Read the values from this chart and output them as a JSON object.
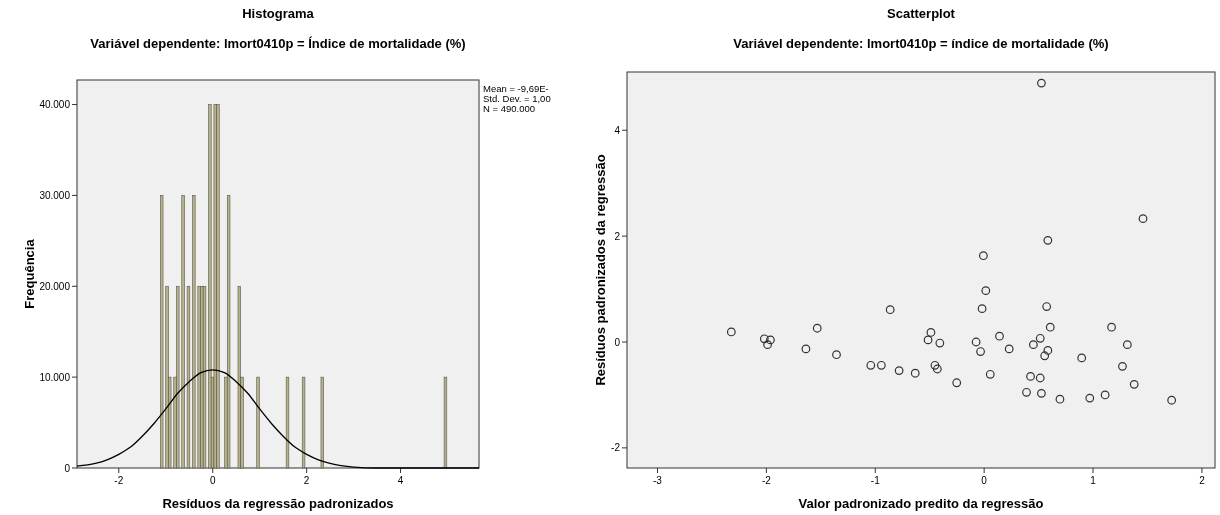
{
  "chart_data": [
    {
      "type": "histogram",
      "title": "Histograma",
      "subtitle": "Variável dependente: lmort0410p = Índice de mortalidade (%)",
      "xlabel": "Resíduos da regressão padronizados",
      "ylabel": "Frequência",
      "color": "#b8b386",
      "bins": [
        -1.115,
        -1.058,
        -1.001,
        -0.944,
        -0.887,
        -0.83,
        -0.773,
        -0.716,
        -0.659,
        -0.602,
        -0.545,
        -0.488,
        -0.431,
        -0.374,
        -0.317,
        -0.26,
        -0.203,
        -0.146,
        -0.089,
        -0.032,
        0.025,
        0.082,
        0.139,
        0.196,
        0.253,
        0.31,
        0.367,
        0.424,
        0.481,
        0.538,
        0.595,
        0.652,
        0.709,
        0.766,
        0.823,
        0.88,
        0.937,
        0.994,
        1.051,
        1.108,
        1.165,
        1.222,
        1.279,
        1.336,
        1.393,
        1.45,
        1.507,
        1.564,
        1.621,
        1.678,
        1.735,
        1.792,
        1.849,
        1.906,
        1.963,
        2.02,
        2.077,
        2.134,
        2.191,
        2.248,
        2.305,
        2.362,
        2.419,
        2.476,
        2.533,
        2.59,
        2.647,
        2.704,
        2.761,
        2.818,
        2.875,
        2.932,
        2.989,
        3.046,
        3.103,
        3.16,
        3.217,
        3.274,
        3.331,
        3.388,
        3.445,
        3.502,
        3.559,
        3.616,
        3.673,
        3.73,
        3.787,
        3.844,
        3.901,
        3.958,
        4.015,
        4.072,
        4.129,
        4.186,
        4.243,
        4.3,
        4.357,
        4.414,
        4.471,
        4.528,
        4.585,
        4.642,
        4.699,
        4.756,
        4.813,
        4.87,
        4.927,
        4.984
      ],
      "values": [
        30000,
        0,
        20000,
        10000,
        0,
        10000,
        20000,
        0,
        30000,
        0,
        20000,
        0,
        30000,
        0,
        20000,
        20000,
        20000,
        0,
        40000,
        10000,
        40000,
        40000,
        0,
        0,
        10000,
        30000,
        0,
        0,
        0,
        20000,
        10000,
        0,
        0,
        0,
        0,
        0,
        10000,
        0,
        0,
        0,
        0,
        0,
        0,
        0,
        0,
        0,
        0,
        10000,
        0,
        0,
        0,
        0,
        0,
        10000,
        0,
        0,
        0,
        0,
        0,
        0,
        10000,
        0,
        0,
        0,
        0,
        0,
        0,
        0,
        0,
        0,
        0,
        0,
        0,
        0,
        0,
        0,
        0,
        0,
        0,
        0,
        0,
        0,
        0,
        0,
        0,
        0,
        0,
        0,
        0,
        0,
        0,
        0,
        0,
        0,
        0,
        0,
        0,
        0,
        0,
        0,
        0,
        0,
        0,
        0,
        0,
        0,
        10000
      ],
      "series": [
        {
          "type": "line",
          "color": "#000000",
          "x": [
            -2.89,
            -2.5,
            -2.25,
            -2,
            -1.75,
            -1.5,
            -1.25,
            -1,
            -0.75,
            -0.5,
            -0.25,
            0,
            0.25,
            0.5,
            0.75,
            1,
            1.25,
            1.5,
            1.75,
            2,
            2.25,
            2.5,
            3,
            3.5,
            4,
            5.67
          ],
          "values": [
            200,
            500,
            900,
            1500,
            2300,
            3500,
            4900,
            6500,
            8200,
            9500,
            10500,
            10800,
            10500,
            9500,
            8200,
            6500,
            4900,
            3500,
            2300,
            1500,
            900,
            500,
            100,
            0,
            0,
            0
          ]
        }
      ],
      "xlim": [
        -2.89,
        5.67
      ],
      "xticks": [
        -2,
        0,
        2,
        4
      ],
      "ylim": [
        0,
        42700
      ],
      "yticks": [
        0,
        {
          "value": 10000,
          "label": "10.000"
        },
        {
          "value": 20000,
          "label": "20.000"
        },
        {
          "value": 30000,
          "label": "30.000"
        },
        {
          "value": 40000,
          "label": "40.000"
        }
      ],
      "annotations": [
        "Mean = -9,69E-",
        "Std. Dev. = 1,00",
        "N = 490.000"
      ]
    },
    {
      "type": "scatter",
      "title": "Scatterplot",
      "subtitle": "Variável dependente: lmort0410p = índice de mortalidade (%)",
      "xlabel": "Valor padronizado predito da regressão",
      "ylabel": "Resíduos padronizados da regressão",
      "color": "#333333",
      "marker": "circle",
      "x": [
        0.526,
        1.459,
        0.585,
        -0.007,
        0.015,
        -0.019,
        0.574,
        -0.863,
        -2.322,
        -2.019,
        -1.963,
        -1.989,
        -1.533,
        -1.637,
        -1.356,
        -1.041,
        -0.944,
        -0.781,
        -0.633,
        -0.489,
        -0.515,
        -0.407,
        -0.452,
        -0.43,
        -0.252,
        -0.074,
        -0.033,
        0.056,
        0.141,
        0.23,
        0.452,
        0.515,
        0.607,
        0.585,
        0.556,
        0.426,
        0.515,
        0.389,
        0.526,
        0.696,
        0.896,
        0.97,
        1.111,
        1.17,
        1.27,
        1.315,
        1.378,
        1.722
      ],
      "values": [
        4.89,
        2.33,
        1.92,
        1.63,
        0.97,
        0.63,
        0.67,
        0.61,
        0.19,
        0.06,
        0.04,
        -0.05,
        0.26,
        -0.13,
        -0.24,
        -0.44,
        -0.44,
        -0.54,
        -0.59,
        0.18,
        0.04,
        -0.02,
        -0.44,
        -0.51,
        -0.77,
        0,
        -0.18,
        -0.61,
        0.11,
        -0.13,
        -0.05,
        0.07,
        0.28,
        -0.16,
        -0.26,
        -0.65,
        -0.68,
        -0.95,
        -0.97,
        -1.08,
        -0.3,
        -1.06,
        -1,
        0.28,
        -0.46,
        -0.05,
        -0.8,
        -1.1
      ],
      "xlim": [
        -3.28,
        2.12
      ],
      "xticks": [
        -3,
        -2,
        -1,
        0,
        1,
        2
      ],
      "ylim": [
        -2.38,
        5.1
      ],
      "yticks": [
        -2,
        0,
        2,
        4
      ]
    }
  ]
}
